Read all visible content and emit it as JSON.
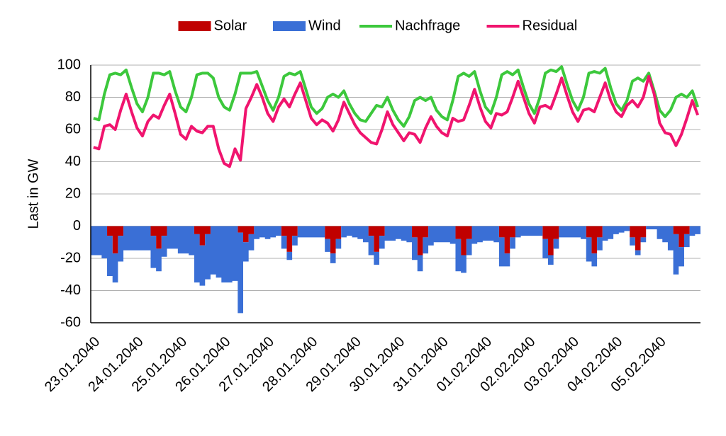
{
  "chart_data": {
    "type": "area",
    "y_label": "Last in GW",
    "ylim": [
      -60,
      100
    ],
    "yticks": [
      -60,
      -40,
      -20,
      0,
      20,
      40,
      60,
      80,
      100
    ],
    "grid": true,
    "legend": "top",
    "categories": [
      "23.01.2040",
      null,
      null,
      null,
      null,
      null,
      null,
      null,
      "24.01.2040",
      null,
      null,
      null,
      null,
      null,
      null,
      null,
      "25.01.2040",
      null,
      null,
      null,
      null,
      null,
      null,
      null,
      "26.01.2040",
      null,
      null,
      null,
      null,
      null,
      null,
      null,
      "27.01.2040",
      null,
      null,
      null,
      null,
      null,
      null,
      null,
      "28.01.2040",
      null,
      null,
      null,
      null,
      null,
      null,
      null,
      "29.01.2040",
      null,
      null,
      null,
      null,
      null,
      null,
      null,
      "30.01.2040",
      null,
      null,
      null,
      null,
      null,
      null,
      null,
      "31.01.2040",
      null,
      null,
      null,
      null,
      null,
      null,
      null,
      "01.02.2040",
      null,
      null,
      null,
      null,
      null,
      null,
      null,
      "02.02.2040",
      null,
      null,
      null,
      null,
      null,
      null,
      null,
      "03.02.2040",
      null,
      null,
      null,
      null,
      null,
      null,
      null,
      "04.02.2040",
      null,
      null,
      null,
      null,
      null,
      null,
      null,
      "05.02.2040",
      null,
      null,
      null,
      null,
      null,
      null,
      null
    ],
    "series": [
      {
        "name": "Solar",
        "type": "area",
        "stacked": true,
        "color": "#c00000",
        "values": [
          0,
          0,
          0,
          -6,
          -17,
          -6,
          0,
          0,
          0,
          0,
          0,
          -6,
          -14,
          -6,
          0,
          0,
          0,
          0,
          0,
          -5,
          -12,
          -5,
          0,
          0,
          0,
          0,
          0,
          -4,
          -10,
          -5,
          0,
          0,
          0,
          0,
          0,
          -6,
          -16,
          -6,
          0,
          0,
          0,
          0,
          0,
          -8,
          -17,
          -8,
          0,
          0,
          0,
          0,
          0,
          -6,
          -16,
          -6,
          0,
          0,
          0,
          0,
          0,
          -7,
          -18,
          -7,
          0,
          0,
          0,
          0,
          0,
          -8,
          -18,
          -8,
          0,
          0,
          0,
          0,
          0,
          -7,
          -17,
          -7,
          0,
          0,
          0,
          0,
          0,
          -8,
          -18,
          -8,
          0,
          0,
          0,
          0,
          0,
          -7,
          -17,
          -7,
          0,
          0,
          0,
          0,
          0,
          -7,
          -15,
          -7,
          0,
          0,
          0,
          0,
          0,
          -5,
          -13,
          -5,
          0,
          0
        ]
      },
      {
        "name": "Wind",
        "type": "area",
        "stacked": true,
        "color": "#3a6fd6",
        "values": [
          -18,
          -18,
          -20,
          -25,
          -18,
          -16,
          -15,
          -15,
          -15,
          -15,
          -15,
          -20,
          -14,
          -13,
          -14,
          -14,
          -17,
          -17,
          -18,
          -30,
          -25,
          -28,
          -30,
          -32,
          -35,
          -35,
          -34,
          -50,
          -12,
          -10,
          -8,
          -7,
          -8,
          -7,
          -6,
          -8,
          -5,
          -6,
          -7,
          -7,
          -7,
          -7,
          -7,
          -8,
          -6,
          -6,
          -7,
          -6,
          -7,
          -8,
          -10,
          -12,
          -8,
          -8,
          -9,
          -9,
          -8,
          -9,
          -10,
          -14,
          -10,
          -10,
          -12,
          -10,
          -10,
          -10,
          -11,
          -20,
          -11,
          -10,
          -11,
          -10,
          -9,
          -9,
          -10,
          -18,
          -8,
          -7,
          -7,
          -6,
          -6,
          -6,
          -6,
          -12,
          -6,
          -6,
          -7,
          -7,
          -7,
          -7,
          -8,
          -15,
          -8,
          -8,
          -9,
          -8,
          -5,
          -4,
          -3,
          -5,
          -3,
          -3,
          -2,
          -2,
          -8,
          -10,
          -15,
          -25,
          -12,
          -8,
          -6,
          -5
        ]
      },
      {
        "name": "Nachfrage",
        "type": "line",
        "color": "#3cc83c",
        "values": [
          67,
          66,
          82,
          94,
          95,
          94,
          97,
          86,
          76,
          71,
          80,
          95,
          95,
          94,
          96,
          84,
          74,
          71,
          80,
          94,
          95,
          95,
          92,
          80,
          74,
          72,
          82,
          95,
          95,
          95,
          96,
          87,
          78,
          72,
          80,
          93,
          95,
          94,
          96,
          85,
          74,
          70,
          73,
          80,
          82,
          80,
          84,
          76,
          70,
          66,
          65,
          70,
          75,
          74,
          80,
          72,
          66,
          62,
          68,
          78,
          80,
          78,
          80,
          72,
          68,
          66,
          78,
          93,
          95,
          93,
          96,
          84,
          74,
          70,
          80,
          94,
          96,
          94,
          97,
          86,
          76,
          70,
          80,
          95,
          97,
          96,
          99,
          88,
          78,
          72,
          80,
          95,
          96,
          95,
          98,
          86,
          76,
          72,
          78,
          90,
          92,
          90,
          95,
          84,
          72,
          68,
          72,
          80,
          82,
          80,
          84,
          74
        ]
      },
      {
        "name": "Residual",
        "type": "line",
        "color": "#f0146e",
        "values": [
          49,
          48,
          62,
          63,
          60,
          72,
          82,
          71,
          61,
          56,
          65,
          69,
          67,
          75,
          82,
          70,
          57,
          54,
          62,
          59,
          58,
          62,
          62,
          48,
          39,
          37,
          48,
          41,
          73,
          80,
          88,
          80,
          70,
          65,
          74,
          79,
          74,
          82,
          89,
          78,
          67,
          63,
          66,
          64,
          59,
          66,
          77,
          70,
          63,
          58,
          55,
          52,
          51,
          60,
          71,
          63,
          58,
          53,
          58,
          57,
          52,
          61,
          68,
          62,
          58,
          56,
          67,
          65,
          66,
          75,
          85,
          74,
          65,
          61,
          70,
          69,
          71,
          80,
          90,
          80,
          70,
          64,
          74,
          75,
          73,
          82,
          92,
          81,
          71,
          65,
          72,
          73,
          71,
          80,
          89,
          78,
          71,
          68,
          75,
          78,
          74,
          80,
          93,
          82,
          64,
          58,
          57,
          50,
          57,
          67,
          78,
          69
        ]
      }
    ]
  }
}
